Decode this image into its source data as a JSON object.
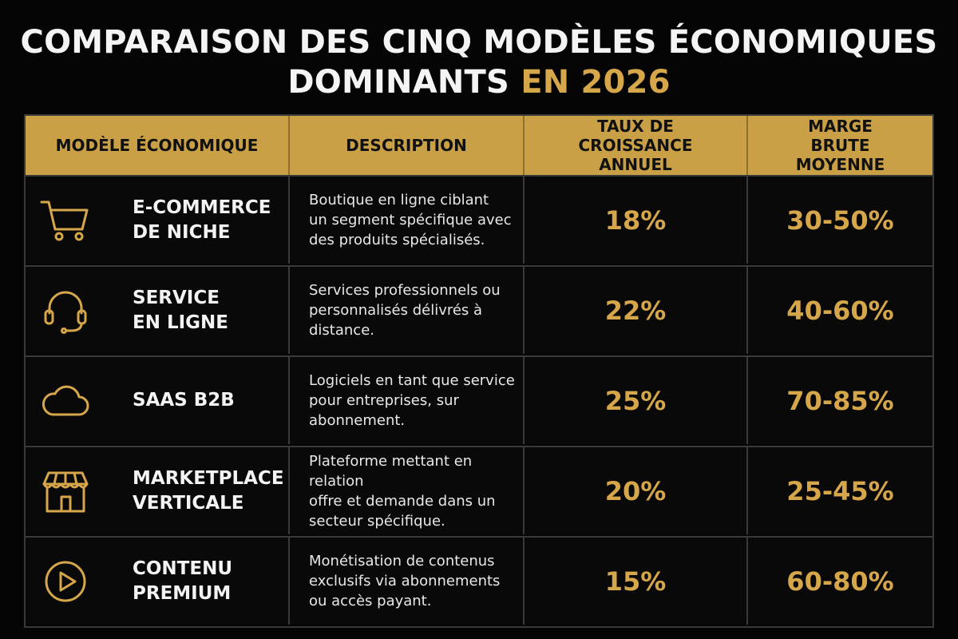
{
  "title": {
    "main": "COMPARAISON DES CINQ MODÈLES ÉCONOMIQUES",
    "second_line": "DOMINANTS",
    "accent": "EN 2026"
  },
  "colors": {
    "accent": "#d6a64a",
    "header_bg": "#c9a046",
    "background": "#050505"
  },
  "headers": {
    "model": "MODÈLE ÉCONOMIQUE",
    "description": "DESCRIPTION",
    "growth": "TAUX DE CROISSANCE ANNUEL",
    "margin": "MARGE BRUTE MOYENNE"
  },
  "rows": [
    {
      "icon": "shopping-cart-icon",
      "name_l1": "E-COMMERCE",
      "name_l2": "DE NICHE",
      "desc": [
        "Boutique en ligne ciblant",
        "un segment spécifique avec",
        "des produits spécialisés."
      ],
      "growth": "18%",
      "margin": "30-50%"
    },
    {
      "icon": "headset-icon",
      "name_l1": "SERVICE",
      "name_l2": "EN LIGNE",
      "desc": [
        "Services professionnels ou",
        "personnalisés délivrés à",
        "distance."
      ],
      "growth": "22%",
      "margin": "40-60%"
    },
    {
      "icon": "cloud-icon",
      "name_l1": "SAAS B2B",
      "name_l2": "",
      "desc": [
        "Logiciels en tant que service",
        "pour entreprises, sur",
        "abonnement."
      ],
      "growth": "25%",
      "margin": "70-85%"
    },
    {
      "icon": "storefront-icon",
      "name_l1": "MARKETPLACE",
      "name_l2": "VERTICALE",
      "desc": [
        "Plateforme mettant en relation",
        "offre et demande dans un",
        "secteur spécifique."
      ],
      "growth": "20%",
      "margin": "25-45%"
    },
    {
      "icon": "play-circle-icon",
      "name_l1": "CONTENU",
      "name_l2": "PREMIUM",
      "desc": [
        "Monétisation de contenus",
        "exclusifs via abonnements",
        "ou accès payant."
      ],
      "growth": "15%",
      "margin": "60-80%"
    }
  ]
}
